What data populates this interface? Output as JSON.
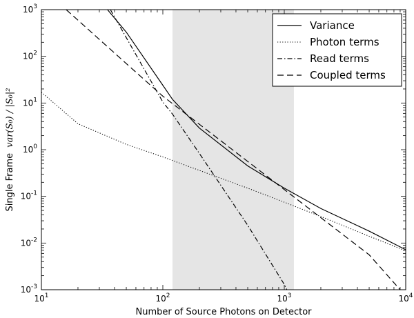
{
  "chart_data": {
    "type": "line",
    "xlabel": "Number of Source Photons on Detector",
    "ylabel_prefix": "Single Frame",
    "ylabel_math": "var(S₀) / |S₀|²",
    "xscale": "log",
    "yscale": "log",
    "xlim": [
      10,
      10000
    ],
    "ylim": [
      0.001,
      1000
    ],
    "x_tick_values": [
      10,
      100,
      1000,
      10000
    ],
    "x_tick_labels": [
      {
        "base": "10",
        "exp": "1"
      },
      {
        "base": "10",
        "exp": "2"
      },
      {
        "base": "10",
        "exp": "3"
      },
      {
        "base": "10",
        "exp": "4"
      }
    ],
    "y_tick_values": [
      0.001,
      0.01,
      0.1,
      1,
      10,
      100,
      1000
    ],
    "y_tick_labels": [
      {
        "base": "10",
        "exp": "-3"
      },
      {
        "base": "10",
        "exp": "-2"
      },
      {
        "base": "10",
        "exp": "-1"
      },
      {
        "base": "10",
        "exp": "0"
      },
      {
        "base": "10",
        "exp": "1"
      },
      {
        "base": "10",
        "exp": "2"
      },
      {
        "base": "10",
        "exp": "3"
      }
    ],
    "shaded_region_x": [
      120,
      1200
    ],
    "shaded_color": "#e5e5e5",
    "grid": false,
    "legend_position": "top-right",
    "series": [
      {
        "name": "Variance",
        "style": "solid",
        "x": [
          35,
          50,
          100,
          120,
          200,
          500,
          1000,
          2000,
          5000,
          10000
        ],
        "y": [
          1000,
          330,
          24,
          12,
          2.9,
          0.45,
          0.15,
          0.055,
          0.018,
          0.0072
        ]
      },
      {
        "name": "Photon terms",
        "style": "dotted",
        "x": [
          10,
          20,
          50,
          100,
          200,
          500,
          1000,
          2000,
          5000,
          10000
        ],
        "y": [
          17,
          3.6,
          1.3,
          0.7,
          0.36,
          0.15,
          0.075,
          0.037,
          0.014,
          0.0068
        ]
      },
      {
        "name": "Read terms",
        "style": "dashdot",
        "x": [
          37,
          100,
          120,
          200,
          500,
          1000,
          1050
        ],
        "y": [
          1000,
          10.5,
          5.8,
          0.83,
          0.024,
          0.0013,
          0.001
        ]
      },
      {
        "name": "Coupled terms",
        "style": "dashed",
        "x": [
          16,
          50,
          100,
          200,
          500,
          1000,
          2000,
          5000,
          9000
        ],
        "y": [
          1000,
          70,
          14,
          3.5,
          0.56,
          0.14,
          0.035,
          0.0056,
          0.001
        ]
      }
    ]
  }
}
